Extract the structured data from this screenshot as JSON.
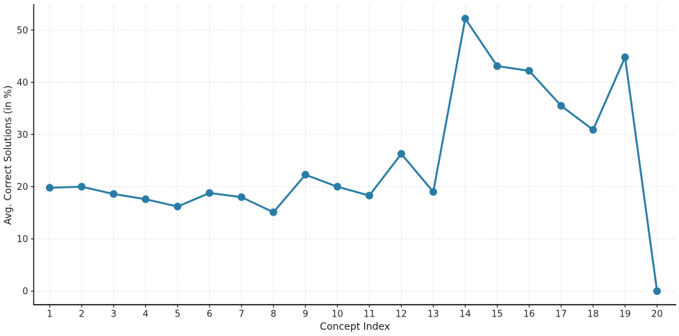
{
  "figure": {
    "background_color": "#ffffff"
  },
  "chart_data": {
    "type": "line",
    "title": "",
    "xlabel": "Concept Index",
    "ylabel": "Avg. Correct Solutions (in %)",
    "x": [
      1,
      2,
      3,
      4,
      5,
      6,
      7,
      8,
      9,
      10,
      11,
      12,
      13,
      14,
      15,
      16,
      17,
      18,
      19,
      20
    ],
    "series": [
      {
        "name": "avg-correct-solutions",
        "values": [
          19.8,
          20.0,
          18.6,
          17.6,
          16.2,
          18.8,
          18.0,
          15.1,
          22.3,
          20.0,
          18.3,
          26.3,
          19.0,
          52.2,
          43.1,
          42.2,
          35.5,
          30.9,
          44.8,
          0.0
        ],
        "marker": "circle"
      }
    ],
    "xtick_labels": [
      "1",
      "2",
      "3",
      "4",
      "5",
      "6",
      "7",
      "8",
      "9",
      "10",
      "11",
      "12",
      "13",
      "14",
      "15",
      "16",
      "17",
      "18",
      "19",
      "20"
    ],
    "yticks": [
      0,
      10,
      20,
      30,
      40,
      50
    ],
    "ytick_labels": [
      "0",
      "10",
      "20",
      "30",
      "40",
      "50"
    ],
    "xlim": [
      0.5,
      20.6
    ],
    "ylim": [
      -2.6,
      54.7
    ],
    "grid": true,
    "grid_style": "dashed",
    "legend": "none",
    "colors": {
      "line": "#2a7ca6",
      "marker": "#2a7ca6",
      "grid": "#e3e3e3",
      "spine": "#1a1a1a",
      "tick_text": "#262626",
      "label_text": "#1a1a1a"
    }
  }
}
